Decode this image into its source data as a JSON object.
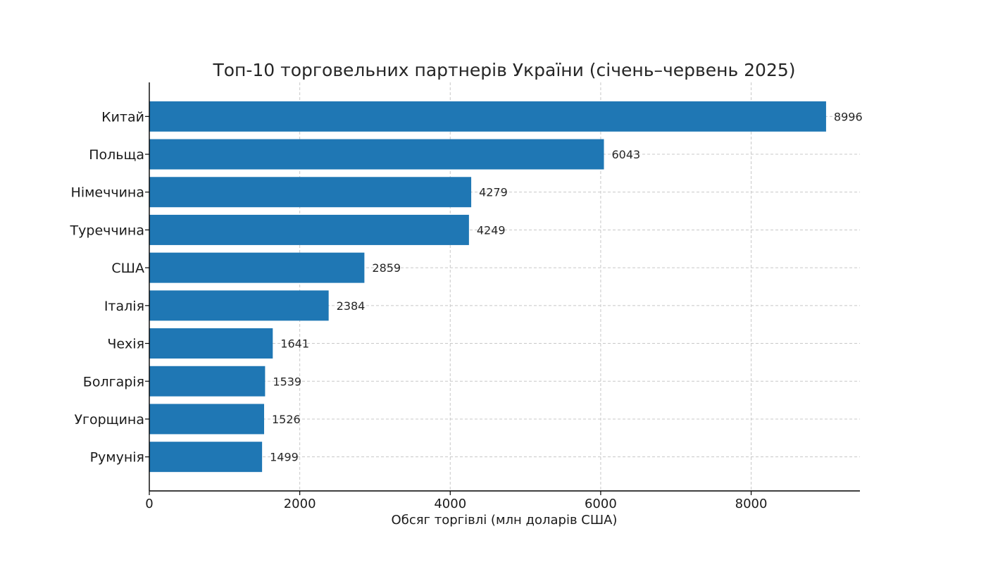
{
  "chart_data": {
    "type": "bar",
    "orientation": "horizontal",
    "title": "Топ-10 торговельних партнерів України (січень–червень 2025)",
    "xlabel": "Обсяг торгівлі (млн доларів США)",
    "ylabel": "",
    "categories": [
      "Китай",
      "Польща",
      "Німеччина",
      "Туреччина",
      "США",
      "Італія",
      "Чехія",
      "Болгарія",
      "Угорщина",
      "Румунія"
    ],
    "values": [
      8996,
      6043,
      4279,
      4249,
      2859,
      2384,
      1641,
      1539,
      1526,
      1499
    ],
    "xticks": [
      0,
      2000,
      4000,
      6000,
      8000
    ],
    "xlim": [
      0,
      9446
    ],
    "grid": true,
    "data_labels": true,
    "bar_color": "#1f77b4"
  }
}
